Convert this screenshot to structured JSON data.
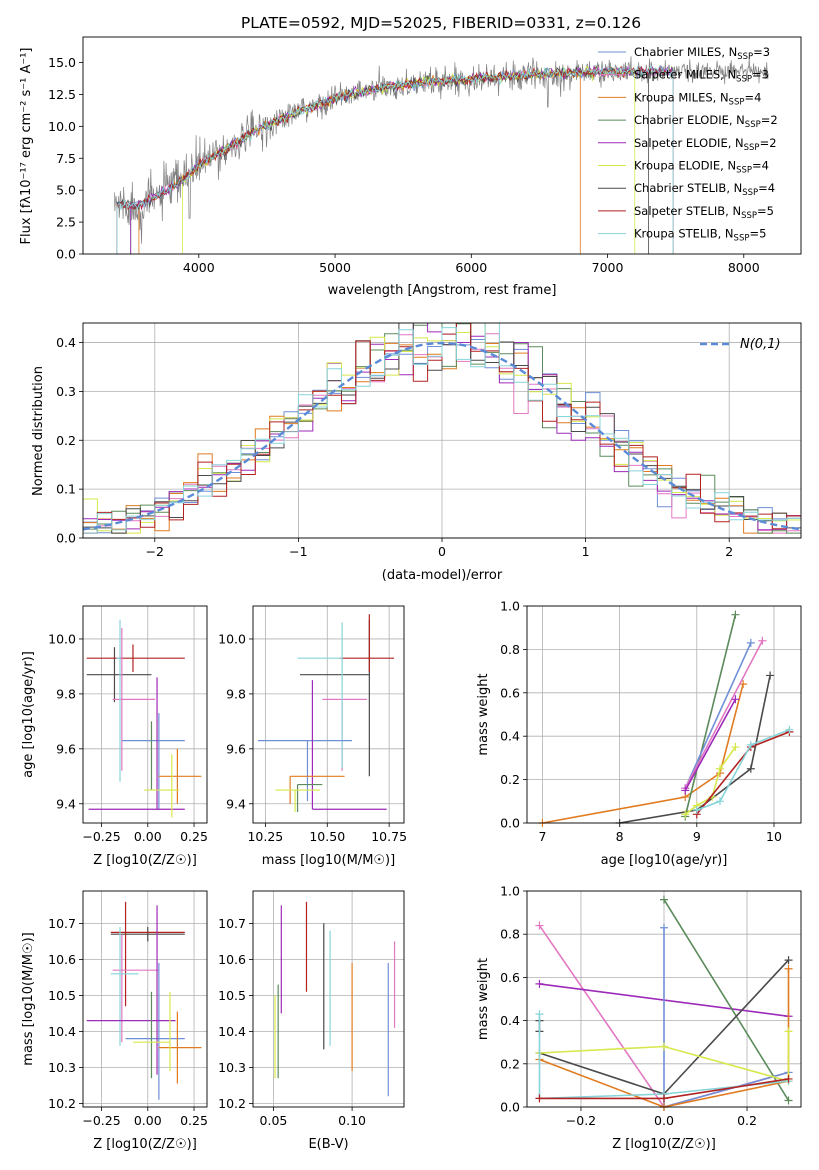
{
  "figure": {
    "title": "PLATE=0592, MJD=52025, FIBERID=0331, z=0.126"
  },
  "chart_data": [
    {
      "id": "spectrum",
      "type": "line",
      "title": "PLATE=0592, MJD=52025, FIBERID=0331, z=0.126",
      "xlabel": "wavelength [Angstrom, rest frame]",
      "ylabel": "Flux [f_λ 10^-17 erg cm^-2 s^-1 A^-1]",
      "xlim": [
        3150,
        8420
      ],
      "ylim": [
        0,
        17
      ],
      "xticks": [
        4000,
        5000,
        6000,
        7000,
        8000
      ],
      "yticks": [
        0.0,
        2.5,
        5.0,
        7.5,
        10.0,
        12.5,
        15.0
      ],
      "grid": false,
      "legend_position": "top-right",
      "continuum_knots": [
        [
          3380,
          4.0
        ],
        [
          3550,
          3.7
        ],
        [
          3700,
          4.6
        ],
        [
          3900,
          5.9
        ],
        [
          4000,
          7.0
        ],
        [
          4200,
          8.2
        ],
        [
          4400,
          9.6
        ],
        [
          4700,
          11.0
        ],
        [
          5000,
          12.2
        ],
        [
          5300,
          12.9
        ],
        [
          5600,
          13.4
        ],
        [
          6000,
          13.7
        ],
        [
          6400,
          14.0
        ],
        [
          6800,
          14.2
        ],
        [
          7200,
          14.3
        ],
        [
          7500,
          14.3
        ]
      ],
      "series": [
        {
          "name": "Chabrier MILES, N_SSP=3",
          "color": "#6f8fd6"
        },
        {
          "name": "Salpeter MILES, N_SSP=3",
          "color": "#e377c2"
        },
        {
          "name": "Kroupa MILES, N_SSP=4",
          "color": "#e07b20"
        },
        {
          "name": "Chabrier ELODIE, N_SSP=2",
          "color": "#5b8a5b"
        },
        {
          "name": "Salpeter ELODIE, N_SSP=2",
          "color": "#9d2ab8"
        },
        {
          "name": "Kroupa ELODIE, N_SSP=4",
          "color": "#d6e84b"
        },
        {
          "name": "Chabrier STELIB, N_SSP=4",
          "color": "#4a4a4a"
        },
        {
          "name": "Salpeter STELIB, N_SSP=5",
          "color": "#b22222"
        },
        {
          "name": "Kroupa STELIB, N_SSP=5",
          "color": "#87d4d9"
        }
      ]
    },
    {
      "id": "residuals",
      "type": "line",
      "xlabel": "(data-model)/error",
      "ylabel": "Normed distribution",
      "xlim": [
        -2.5,
        2.5
      ],
      "ylim": [
        0,
        0.44
      ],
      "xticks": [
        -2,
        -1,
        0,
        1,
        2
      ],
      "yticks": [
        0.0,
        0.1,
        0.2,
        0.3,
        0.4
      ],
      "grid": true,
      "legend_position": "top-right",
      "legend": "N(0,1)",
      "gaussian": {
        "mu": 0,
        "sigma": 1,
        "color": "#5b8bd6"
      },
      "bin_width": 0.1
    },
    {
      "id": "age_vs_Z",
      "type": "scatter",
      "xlabel": "Z [log10(Z/Z☉)]",
      "ylabel": "age [log10(age/yr)]",
      "xlim": [
        -0.35,
        0.32
      ],
      "ylim": [
        9.33,
        10.12
      ],
      "xticks": [
        -0.25,
        0.0,
        0.25
      ],
      "yticks": [
        9.4,
        9.6,
        9.8,
        10.0
      ],
      "grid": true,
      "points": [
        {
          "x": -0.18,
          "y": 9.87,
          "xerr": [
            0.15,
            0.2
          ],
          "yerr": [
            0.1,
            0.1
          ],
          "color": "#4a4a4a"
        },
        {
          "x": -0.08,
          "y": 9.93,
          "xerr": [
            0.25,
            0.28
          ],
          "yerr": [
            0.05,
            0.05
          ],
          "color": "#b22222"
        },
        {
          "x": -0.14,
          "y": 9.78,
          "xerr": [
            0.05,
            0.18
          ],
          "yerr": [
            0.26,
            0.26
          ],
          "color": "#e377c2"
        },
        {
          "x": -0.15,
          "y": 9.93,
          "xerr": [
            0.02,
            0.0
          ],
          "yerr": [
            0.45,
            0.14
          ],
          "color": "#87d4d9"
        },
        {
          "x": 0.06,
          "y": 9.63,
          "xerr": [
            0.2,
            0.14
          ],
          "yerr": [
            0.25,
            0.1
          ],
          "color": "#6f8fd6"
        },
        {
          "x": 0.05,
          "y": 9.38,
          "xerr": [
            0.37,
            0.15
          ],
          "yerr": [
            0.0,
            0.48
          ],
          "color": "#9d2ab8"
        },
        {
          "x": 0.02,
          "y": 9.53,
          "xerr": [
            0.0,
            0.0
          ],
          "yerr": [
            0.08,
            0.17
          ],
          "color": "#5b8a5b"
        },
        {
          "x": 0.16,
          "y": 9.5,
          "xerr": [
            0.1,
            0.13
          ],
          "yerr": [
            0.1,
            0.1
          ],
          "color": "#e07b20"
        },
        {
          "x": 0.13,
          "y": 9.45,
          "xerr": [
            0.15,
            0.04
          ],
          "yerr": [
            0.1,
            0.13
          ],
          "color": "#d6e84b"
        }
      ]
    },
    {
      "id": "age_vs_mass",
      "type": "scatter",
      "xlabel": "mass [log10(M/M☉)]",
      "ylabel": "",
      "xlim": [
        10.2,
        10.81
      ],
      "ylim": [
        9.33,
        10.12
      ],
      "xticks": [
        10.25,
        10.5,
        10.75
      ],
      "yticks": [
        9.4,
        9.6,
        9.8,
        10.0
      ],
      "grid": true,
      "points": [
        {
          "x": 10.67,
          "y": 9.87,
          "xerr": [
            0.28,
            0.0
          ],
          "yerr": [
            0.37,
            0.2
          ],
          "color": "#4a4a4a"
        },
        {
          "x": 10.67,
          "y": 9.93,
          "xerr": [
            0.12,
            0.1
          ],
          "yerr": [
            0.05,
            0.16
          ],
          "color": "#b22222"
        },
        {
          "x": 10.56,
          "y": 9.78,
          "xerr": [
            0.08,
            0.1
          ],
          "yerr": [
            0.26,
            0.0
          ],
          "color": "#e377c2"
        },
        {
          "x": 10.56,
          "y": 9.93,
          "xerr": [
            0.18,
            0.0
          ],
          "yerr": [
            0.4,
            0.13
          ],
          "color": "#87d4d9"
        },
        {
          "x": 10.42,
          "y": 9.63,
          "xerr": [
            0.2,
            0.18
          ],
          "yerr": [
            0.22,
            0.0
          ],
          "color": "#6f8fd6"
        },
        {
          "x": 10.44,
          "y": 9.38,
          "xerr": [
            0.0,
            0.3
          ],
          "yerr": [
            0.0,
            0.47
          ],
          "color": "#9d2ab8"
        },
        {
          "x": 10.38,
          "y": 9.47,
          "xerr": [
            0.0,
            0.1
          ],
          "yerr": [
            0.1,
            0.0
          ],
          "color": "#5b8a5b"
        },
        {
          "x": 10.35,
          "y": 9.5,
          "xerr": [
            0.0,
            0.22
          ],
          "yerr": [
            0.1,
            0.0
          ],
          "color": "#e07b20"
        },
        {
          "x": 10.37,
          "y": 9.45,
          "xerr": [
            0.08,
            0.1
          ],
          "yerr": [
            0.08,
            0.0
          ],
          "color": "#d6e84b"
        }
      ]
    },
    {
      "id": "weight_vs_age",
      "type": "line",
      "xlabel": "age [log10(age/yr)]",
      "ylabel": "mass weight",
      "xlim": [
        6.8,
        10.35
      ],
      "ylim": [
        0,
        1.0
      ],
      "xticks": [
        7,
        8,
        9,
        10
      ],
      "yticks": [
        0.0,
        0.2,
        0.4,
        0.6,
        0.8,
        1.0
      ],
      "grid": true,
      "series": [
        {
          "color": "#e07b20",
          "x": [
            7.0,
            8.85,
            9.3,
            9.6
          ],
          "y": [
            0.0,
            0.12,
            0.23,
            0.64
          ]
        },
        {
          "color": "#4a4a4a",
          "x": [
            8.0,
            9.0,
            9.7,
            9.95
          ],
          "y": [
            0.0,
            0.06,
            0.25,
            0.68
          ]
        },
        {
          "color": "#5b8a5b",
          "x": [
            8.85,
            9.5
          ],
          "y": [
            0.03,
            0.96
          ]
        },
        {
          "color": "#6f8fd6",
          "x": [
            8.85,
            9.7
          ],
          "y": [
            0.16,
            0.83
          ]
        },
        {
          "color": "#e377c2",
          "x": [
            8.85,
            9.85
          ],
          "y": [
            0.16,
            0.84
          ]
        },
        {
          "color": "#9d2ab8",
          "x": [
            8.85,
            9.5
          ],
          "y": [
            0.15,
            0.57
          ]
        },
        {
          "color": "#d6e84b",
          "x": [
            8.85,
            9.0,
            9.2,
            9.3,
            9.5
          ],
          "y": [
            0.04,
            0.08,
            0.12,
            0.25,
            0.35
          ]
        },
        {
          "color": "#b22222",
          "x": [
            9.0,
            9.7,
            10.2
          ],
          "y": [
            0.04,
            0.35,
            0.42
          ]
        },
        {
          "color": "#87d4d9",
          "x": [
            9.0,
            9.3,
            9.7,
            10.2
          ],
          "y": [
            0.06,
            0.1,
            0.36,
            0.43
          ]
        }
      ]
    },
    {
      "id": "mass_vs_Z",
      "type": "scatter",
      "xlabel": "Z [log10(Z/Z☉)]",
      "ylabel": "mass [log10(M/M☉)]",
      "xlim": [
        -0.35,
        0.32
      ],
      "ylim": [
        10.19,
        10.79
      ],
      "xticks": [
        -0.25,
        0.0,
        0.25
      ],
      "yticks": [
        10.2,
        10.3,
        10.4,
        10.5,
        10.6,
        10.7
      ],
      "grid": true,
      "points": [
        {
          "x": 0.0,
          "y": 10.67,
          "xerr": [
            0.2,
            0.2
          ],
          "yerr": [
            0.02,
            0.02
          ],
          "color": "#4a4a4a"
        },
        {
          "x": 0.0,
          "y": 10.675,
          "xerr": [
            0.2,
            0.2
          ],
          "yerr": [
            0.0,
            0.0
          ],
          "color": "#b22222"
        },
        {
          "x": -0.12,
          "y": 10.67,
          "xerr": [
            0.0,
            0.0
          ],
          "yerr": [
            0.2,
            0.09
          ],
          "color": "#b22222"
        },
        {
          "x": -0.14,
          "y": 10.57,
          "xerr": [
            0.05,
            0.2
          ],
          "yerr": [
            0.2,
            0.1
          ],
          "color": "#e377c2"
        },
        {
          "x": -0.15,
          "y": 10.56,
          "xerr": [
            0.05,
            0.1
          ],
          "yerr": [
            0.2,
            0.13
          ],
          "color": "#87d4d9"
        },
        {
          "x": 0.06,
          "y": 10.38,
          "xerr": [
            0.18,
            0.14
          ],
          "yerr": [
            0.17,
            0.21
          ],
          "color": "#6f8fd6"
        },
        {
          "x": 0.05,
          "y": 10.43,
          "xerr": [
            0.38,
            0.1
          ],
          "yerr": [
            0.15,
            0.32
          ],
          "color": "#9d2ab8"
        },
        {
          "x": 0.02,
          "y": 10.39,
          "xerr": [
            0.0,
            0.0
          ],
          "yerr": [
            0.12,
            0.12
          ],
          "color": "#5b8a5b"
        },
        {
          "x": 0.16,
          "y": 10.355,
          "xerr": [
            0.1,
            0.13
          ],
          "yerr": [
            0.1,
            0.1
          ],
          "color": "#e07b20"
        },
        {
          "x": 0.12,
          "y": 10.37,
          "xerr": [
            0.2,
            0.0
          ],
          "yerr": [
            0.08,
            0.14
          ],
          "color": "#d6e84b"
        }
      ]
    },
    {
      "id": "mass_vs_ebv",
      "type": "scatter",
      "xlabel": "E(B-V)",
      "ylabel": "",
      "xlim": [
        0.037,
        0.133
      ],
      "ylim": [
        10.19,
        10.79
      ],
      "xticks": [
        0.05,
        0.1
      ],
      "yticks": [
        10.2,
        10.3,
        10.4,
        10.5,
        10.6,
        10.7
      ],
      "grid": true,
      "points": [
        {
          "x": 0.051,
          "y": 10.39,
          "yerr": [
            0.12,
            0.11
          ],
          "color": "#d6e84b"
        },
        {
          "x": 0.053,
          "y": 10.4,
          "yerr": [
            0.13,
            0.13
          ],
          "color": "#5b8a5b"
        },
        {
          "x": 0.055,
          "y": 10.6,
          "yerr": [
            0.15,
            0.15
          ],
          "color": "#9d2ab8"
        },
        {
          "x": 0.071,
          "y": 10.64,
          "yerr": [
            0.13,
            0.12
          ],
          "color": "#b22222"
        },
        {
          "x": 0.082,
          "y": 10.5,
          "yerr": [
            0.15,
            0.2
          ],
          "color": "#4a4a4a"
        },
        {
          "x": 0.086,
          "y": 10.52,
          "yerr": [
            0.16,
            0.16
          ],
          "color": "#87d4d9"
        },
        {
          "x": 0.1,
          "y": 10.44,
          "yerr": [
            0.15,
            0.15
          ],
          "color": "#e07b20"
        },
        {
          "x": 0.123,
          "y": 10.38,
          "yerr": [
            0.16,
            0.21
          ],
          "color": "#6f8fd6"
        },
        {
          "x": 0.127,
          "y": 10.52,
          "yerr": [
            0.11,
            0.13
          ],
          "color": "#e377c2"
        }
      ]
    },
    {
      "id": "weight_vs_Z",
      "type": "line",
      "xlabel": "Z [log10(Z/Z☉)]",
      "ylabel": "mass weight",
      "xlim": [
        -0.33,
        0.33
      ],
      "ylim": [
        0,
        1.0
      ],
      "xticks": [
        -0.2,
        0.0,
        0.2
      ],
      "yticks": [
        0.0,
        0.2,
        0.4,
        0.6,
        0.8,
        1.0
      ],
      "grid": true,
      "series": [
        {
          "color": "#e377c2",
          "x": [
            -0.3,
            0.0,
            0.3
          ],
          "y": [
            0.84,
            0.0,
            0.16
          ]
        },
        {
          "color": "#9d2ab8",
          "x": [
            -0.3,
            0.3
          ],
          "y": [
            0.57,
            0.42
          ]
        },
        {
          "color": "#5b8a5b",
          "x": [
            0.0,
            0.3
          ],
          "y": [
            0.96,
            0.03
          ]
        },
        {
          "color": "#6f8fd6",
          "x": [
            0.0,
            0.0,
            0.3
          ],
          "y": [
            0.83,
            0.0,
            0.16
          ]
        },
        {
          "color": "#4a4a4a",
          "x": [
            -0.3,
            0.0,
            0.3
          ],
          "y": [
            0.25,
            0.06,
            0.68
          ]
        },
        {
          "color": "#4a4a4a",
          "x": [
            -0.3,
            -0.3
          ],
          "y": [
            0.35,
            0.4
          ]
        },
        {
          "color": "#e07b20",
          "x": [
            -0.3,
            0.0,
            0.3,
            0.3
          ],
          "y": [
            0.22,
            0.0,
            0.12,
            0.64
          ]
        },
        {
          "color": "#d6e84b",
          "x": [
            -0.3,
            0.0,
            0.3,
            0.3
          ],
          "y": [
            0.25,
            0.28,
            0.12,
            0.35
          ]
        },
        {
          "color": "#87d4d9",
          "x": [
            -0.3,
            -0.3,
            0.0,
            0.3
          ],
          "y": [
            0.43,
            0.04,
            0.06,
            0.12
          ]
        },
        {
          "color": "#b22222",
          "x": [
            -0.3,
            0.0,
            0.3
          ],
          "y": [
            0.04,
            0.04,
            0.13
          ]
        }
      ]
    }
  ]
}
